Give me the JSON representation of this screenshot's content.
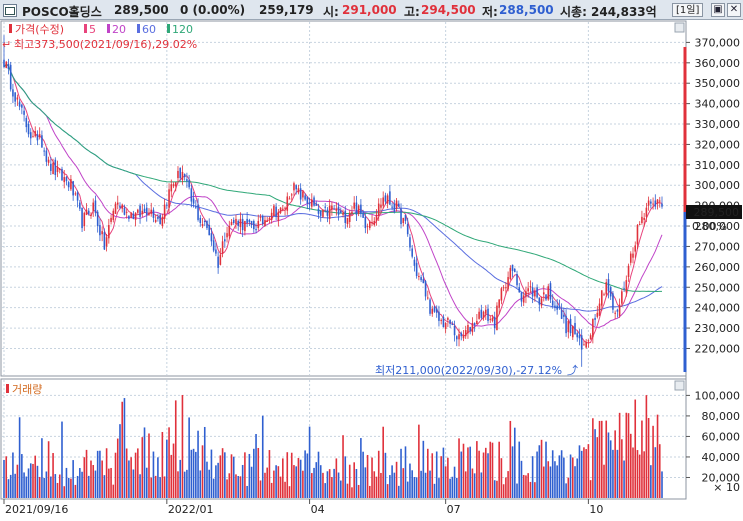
{
  "header": {
    "stock_name": "POSCO홀딩스",
    "price": "289,500",
    "change": "0 (0.00%)",
    "volume": "259,179",
    "open_label": "시:",
    "open": "291,000",
    "high_label": "고:",
    "high": "294,500",
    "low_label": "저:",
    "low": "288,500",
    "mcap_label": "시총:",
    "mcap": "244,833억",
    "period_button": "[1일]"
  },
  "legend": {
    "price_label": "가격(수정)",
    "ma": [
      {
        "label": "5",
        "color": "#e8447c"
      },
      {
        "label": "20",
        "color": "#c044c8"
      },
      {
        "label": "60",
        "color": "#5a6ee0"
      },
      {
        "label": "120",
        "color": "#30a878"
      }
    ],
    "volume_label": "거래량"
  },
  "annotations": {
    "high_note": "최고373,500(2021/09/16),29.02%",
    "low_note": "최저211,000(2022/09/30),-27.12%",
    "current_price_tag": "289,500",
    "current_pct_tag": "0.00%"
  },
  "colors": {
    "up": "#e0313b",
    "down": "#2f5fd0",
    "ma5": "#e8447c",
    "ma20": "#c044c8",
    "ma60": "#5a6ee0",
    "ma120": "#30a878",
    "header_bg": "#dfe6ee"
  },
  "chart_data": {
    "type": "candlestick",
    "price_axis": {
      "ticks": [
        "370,000",
        "360,000",
        "350,000",
        "340,000",
        "330,000",
        "320,000",
        "310,000",
        "300,000",
        "290,000",
        "280,000",
        "270,000",
        "260,000",
        "250,000",
        "240,000",
        "230,000",
        "220,000"
      ],
      "ylim": [
        207000,
        380000
      ]
    },
    "volume_axis": {
      "ticks": [
        "100,000",
        "80,000",
        "60,000",
        "40,000",
        "20,000"
      ],
      "multiplier_label": "× 10",
      "ylim": [
        0,
        115000
      ]
    },
    "x_ticks": [
      {
        "label": "2021/09/16",
        "index": 0
      },
      {
        "label": "2022/01",
        "index": 73
      },
      {
        "label": "04",
        "index": 137
      },
      {
        "label": "07",
        "index": 198
      },
      {
        "label": "10",
        "index": 262
      }
    ],
    "anchors": [
      [
        0,
        362000
      ],
      [
        3,
        350000
      ],
      [
        8,
        335000
      ],
      [
        13,
        322000
      ],
      [
        16,
        326000
      ],
      [
        20,
        310000
      ],
      [
        25,
        305000
      ],
      [
        30,
        300000
      ],
      [
        35,
        282000
      ],
      [
        40,
        290000
      ],
      [
        45,
        270000
      ],
      [
        50,
        292000
      ],
      [
        55,
        287000
      ],
      [
        60,
        285000
      ],
      [
        65,
        289000
      ],
      [
        70,
        283000
      ],
      [
        75,
        300000
      ],
      [
        80,
        307000
      ],
      [
        84,
        292000
      ],
      [
        88,
        283000
      ],
      [
        92,
        277000
      ],
      [
        96,
        262000
      ],
      [
        100,
        280000
      ],
      [
        105,
        283000
      ],
      [
        110,
        279000
      ],
      [
        115,
        281000
      ],
      [
        120,
        288000
      ],
      [
        125,
        287000
      ],
      [
        129,
        299000
      ],
      [
        133,
        295000
      ],
      [
        138,
        291000
      ],
      [
        142,
        284000
      ],
      [
        147,
        289000
      ],
      [
        152,
        284000
      ],
      [
        157,
        290000
      ],
      [
        162,
        282000
      ],
      [
        166,
        285000
      ],
      [
        170,
        294000
      ],
      [
        176,
        289000
      ],
      [
        180,
        280000
      ],
      [
        184,
        260000
      ],
      [
        188,
        250000
      ],
      [
        192,
        237000
      ],
      [
        196,
        233000
      ],
      [
        200,
        232000
      ],
      [
        204,
        224000
      ],
      [
        208,
        229000
      ],
      [
        214,
        238000
      ],
      [
        220,
        233000
      ],
      [
        224,
        252000
      ],
      [
        228,
        258000
      ],
      [
        232,
        246000
      ],
      [
        236,
        249000
      ],
      [
        240,
        244000
      ],
      [
        244,
        248000
      ],
      [
        248,
        240000
      ],
      [
        252,
        231000
      ],
      [
        256,
        228000
      ],
      [
        259,
        219000
      ],
      [
        262,
        226000
      ],
      [
        266,
        241000
      ],
      [
        270,
        253000
      ],
      [
        274,
        235000
      ],
      [
        277,
        246000
      ],
      [
        281,
        265000
      ],
      [
        284,
        278000
      ],
      [
        287,
        287000
      ],
      [
        290,
        294000
      ],
      [
        295,
        289500
      ]
    ],
    "volume_profile": [
      [
        0,
        28000
      ],
      [
        30,
        30000
      ],
      [
        50,
        32000
      ],
      [
        55,
        95000
      ],
      [
        60,
        40000
      ],
      [
        75,
        55000
      ],
      [
        80,
        70000
      ],
      [
        95,
        35000
      ],
      [
        120,
        30000
      ],
      [
        150,
        28000
      ],
      [
        180,
        32000
      ],
      [
        195,
        40000
      ],
      [
        220,
        35000
      ],
      [
        250,
        38000
      ],
      [
        262,
        48000
      ],
      [
        280,
        60000
      ],
      [
        290,
        65000
      ],
      [
        295,
        30000
      ]
    ],
    "ma_periods": [
      5,
      20,
      60,
      120
    ],
    "high": {
      "value": 373500,
      "date": "2021/09/16",
      "pct": 29.02
    },
    "low": {
      "value": 211000,
      "date": "2022/09/30",
      "pct": -27.12
    },
    "last": 289500
  }
}
